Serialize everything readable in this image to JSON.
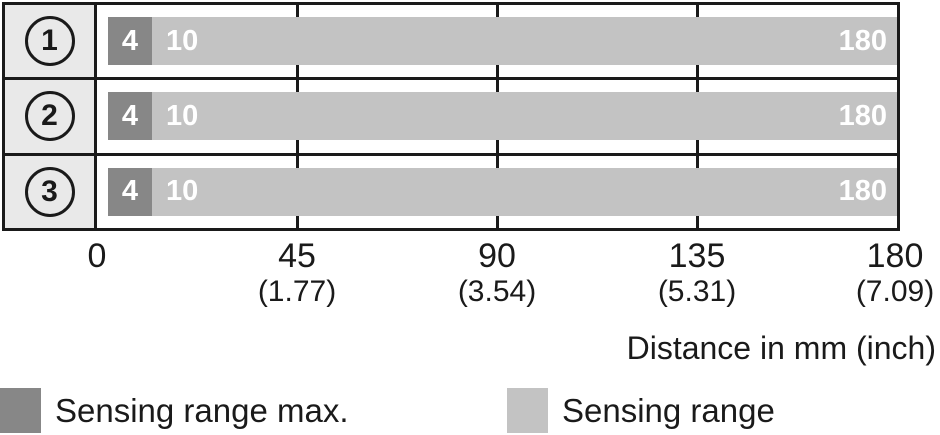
{
  "chart_data": {
    "type": "bar",
    "title": "",
    "description": "Sensing range diagram with three sensor variants, each spanning 4 / 10 to 180 mm",
    "rows": [
      {
        "circle_label": "1",
        "sensing_range_max_start_mm": 4,
        "sensing_range_start_mm": 10,
        "range_end_mm": 180,
        "max_label": "4",
        "start_label": "10",
        "end_label": "180"
      },
      {
        "circle_label": "2",
        "sensing_range_max_start_mm": 4,
        "sensing_range_start_mm": 10,
        "range_end_mm": 180,
        "max_label": "4",
        "start_label": "10",
        "end_label": "180"
      },
      {
        "circle_label": "3",
        "sensing_range_max_start_mm": 4,
        "sensing_range_start_mm": 10,
        "range_end_mm": 180,
        "max_label": "4",
        "start_label": "10",
        "end_label": "180"
      }
    ],
    "x_axis": {
      "label": "Distance in mm (inch)",
      "range_mm": [
        0,
        180
      ],
      "gridlines_mm": [
        45,
        90,
        135
      ],
      "ticks": [
        {
          "mm": "0",
          "inch": ""
        },
        {
          "mm": "45",
          "inch": "(1.77)"
        },
        {
          "mm": "90",
          "inch": "(3.54)"
        },
        {
          "mm": "135",
          "inch": "(5.31)"
        },
        {
          "mm": "180",
          "inch": "(7.09)"
        }
      ]
    },
    "legend": [
      {
        "label": "Sensing range max.",
        "color": "#878787"
      },
      {
        "label": "Sensing range",
        "color": "#c3c3c3"
      }
    ],
    "colors": {
      "bar_dark": "#878787",
      "bar_light": "#c3c3c3",
      "row_label_background": "#e9e9e9",
      "line_black": "#1a1a1a",
      "bar_text": "#ffffff"
    }
  }
}
